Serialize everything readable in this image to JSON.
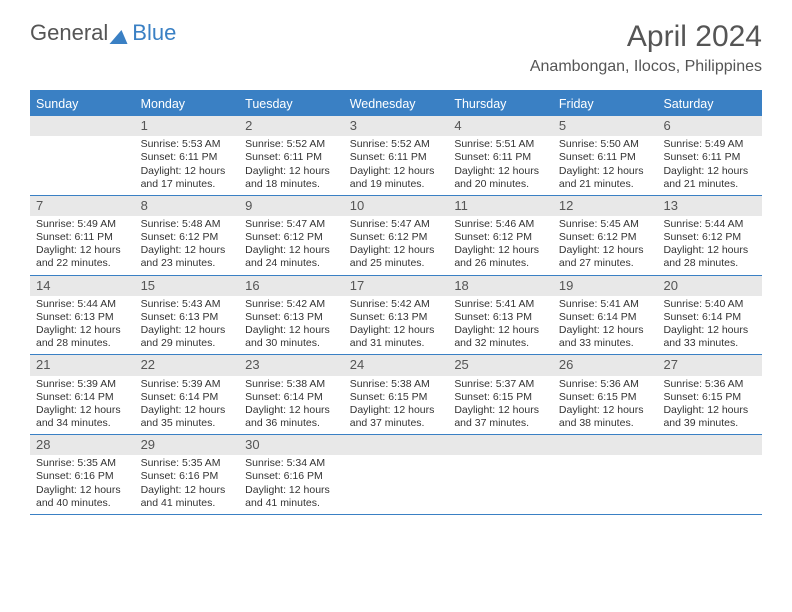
{
  "brand": {
    "part1": "General",
    "part2": "Blue"
  },
  "title": "April 2024",
  "location": "Anambongan, Ilocos, Philippines",
  "colors": {
    "accent": "#3a80c4",
    "daybar_bg": "#e8e8e8",
    "text": "#333333",
    "title_text": "#555555",
    "background": "#ffffff"
  },
  "dow": [
    "Sunday",
    "Monday",
    "Tuesday",
    "Wednesday",
    "Thursday",
    "Friday",
    "Saturday"
  ],
  "weeks": [
    [
      {
        "n": "",
        "sr": "",
        "ss": "",
        "dl": "",
        "dl2": ""
      },
      {
        "n": "1",
        "sr": "Sunrise: 5:53 AM",
        "ss": "Sunset: 6:11 PM",
        "dl": "Daylight: 12 hours",
        "dl2": "and 17 minutes."
      },
      {
        "n": "2",
        "sr": "Sunrise: 5:52 AM",
        "ss": "Sunset: 6:11 PM",
        "dl": "Daylight: 12 hours",
        "dl2": "and 18 minutes."
      },
      {
        "n": "3",
        "sr": "Sunrise: 5:52 AM",
        "ss": "Sunset: 6:11 PM",
        "dl": "Daylight: 12 hours",
        "dl2": "and 19 minutes."
      },
      {
        "n": "4",
        "sr": "Sunrise: 5:51 AM",
        "ss": "Sunset: 6:11 PM",
        "dl": "Daylight: 12 hours",
        "dl2": "and 20 minutes."
      },
      {
        "n": "5",
        "sr": "Sunrise: 5:50 AM",
        "ss": "Sunset: 6:11 PM",
        "dl": "Daylight: 12 hours",
        "dl2": "and 21 minutes."
      },
      {
        "n": "6",
        "sr": "Sunrise: 5:49 AM",
        "ss": "Sunset: 6:11 PM",
        "dl": "Daylight: 12 hours",
        "dl2": "and 21 minutes."
      }
    ],
    [
      {
        "n": "7",
        "sr": "Sunrise: 5:49 AM",
        "ss": "Sunset: 6:11 PM",
        "dl": "Daylight: 12 hours",
        "dl2": "and 22 minutes."
      },
      {
        "n": "8",
        "sr": "Sunrise: 5:48 AM",
        "ss": "Sunset: 6:12 PM",
        "dl": "Daylight: 12 hours",
        "dl2": "and 23 minutes."
      },
      {
        "n": "9",
        "sr": "Sunrise: 5:47 AM",
        "ss": "Sunset: 6:12 PM",
        "dl": "Daylight: 12 hours",
        "dl2": "and 24 minutes."
      },
      {
        "n": "10",
        "sr": "Sunrise: 5:47 AM",
        "ss": "Sunset: 6:12 PM",
        "dl": "Daylight: 12 hours",
        "dl2": "and 25 minutes."
      },
      {
        "n": "11",
        "sr": "Sunrise: 5:46 AM",
        "ss": "Sunset: 6:12 PM",
        "dl": "Daylight: 12 hours",
        "dl2": "and 26 minutes."
      },
      {
        "n": "12",
        "sr": "Sunrise: 5:45 AM",
        "ss": "Sunset: 6:12 PM",
        "dl": "Daylight: 12 hours",
        "dl2": "and 27 minutes."
      },
      {
        "n": "13",
        "sr": "Sunrise: 5:44 AM",
        "ss": "Sunset: 6:12 PM",
        "dl": "Daylight: 12 hours",
        "dl2": "and 28 minutes."
      }
    ],
    [
      {
        "n": "14",
        "sr": "Sunrise: 5:44 AM",
        "ss": "Sunset: 6:13 PM",
        "dl": "Daylight: 12 hours",
        "dl2": "and 28 minutes."
      },
      {
        "n": "15",
        "sr": "Sunrise: 5:43 AM",
        "ss": "Sunset: 6:13 PM",
        "dl": "Daylight: 12 hours",
        "dl2": "and 29 minutes."
      },
      {
        "n": "16",
        "sr": "Sunrise: 5:42 AM",
        "ss": "Sunset: 6:13 PM",
        "dl": "Daylight: 12 hours",
        "dl2": "and 30 minutes."
      },
      {
        "n": "17",
        "sr": "Sunrise: 5:42 AM",
        "ss": "Sunset: 6:13 PM",
        "dl": "Daylight: 12 hours",
        "dl2": "and 31 minutes."
      },
      {
        "n": "18",
        "sr": "Sunrise: 5:41 AM",
        "ss": "Sunset: 6:13 PM",
        "dl": "Daylight: 12 hours",
        "dl2": "and 32 minutes."
      },
      {
        "n": "19",
        "sr": "Sunrise: 5:41 AM",
        "ss": "Sunset: 6:14 PM",
        "dl": "Daylight: 12 hours",
        "dl2": "and 33 minutes."
      },
      {
        "n": "20",
        "sr": "Sunrise: 5:40 AM",
        "ss": "Sunset: 6:14 PM",
        "dl": "Daylight: 12 hours",
        "dl2": "and 33 minutes."
      }
    ],
    [
      {
        "n": "21",
        "sr": "Sunrise: 5:39 AM",
        "ss": "Sunset: 6:14 PM",
        "dl": "Daylight: 12 hours",
        "dl2": "and 34 minutes."
      },
      {
        "n": "22",
        "sr": "Sunrise: 5:39 AM",
        "ss": "Sunset: 6:14 PM",
        "dl": "Daylight: 12 hours",
        "dl2": "and 35 minutes."
      },
      {
        "n": "23",
        "sr": "Sunrise: 5:38 AM",
        "ss": "Sunset: 6:14 PM",
        "dl": "Daylight: 12 hours",
        "dl2": "and 36 minutes."
      },
      {
        "n": "24",
        "sr": "Sunrise: 5:38 AM",
        "ss": "Sunset: 6:15 PM",
        "dl": "Daylight: 12 hours",
        "dl2": "and 37 minutes."
      },
      {
        "n": "25",
        "sr": "Sunrise: 5:37 AM",
        "ss": "Sunset: 6:15 PM",
        "dl": "Daylight: 12 hours",
        "dl2": "and 37 minutes."
      },
      {
        "n": "26",
        "sr": "Sunrise: 5:36 AM",
        "ss": "Sunset: 6:15 PM",
        "dl": "Daylight: 12 hours",
        "dl2": "and 38 minutes."
      },
      {
        "n": "27",
        "sr": "Sunrise: 5:36 AM",
        "ss": "Sunset: 6:15 PM",
        "dl": "Daylight: 12 hours",
        "dl2": "and 39 minutes."
      }
    ],
    [
      {
        "n": "28",
        "sr": "Sunrise: 5:35 AM",
        "ss": "Sunset: 6:16 PM",
        "dl": "Daylight: 12 hours",
        "dl2": "and 40 minutes."
      },
      {
        "n": "29",
        "sr": "Sunrise: 5:35 AM",
        "ss": "Sunset: 6:16 PM",
        "dl": "Daylight: 12 hours",
        "dl2": "and 41 minutes."
      },
      {
        "n": "30",
        "sr": "Sunrise: 5:34 AM",
        "ss": "Sunset: 6:16 PM",
        "dl": "Daylight: 12 hours",
        "dl2": "and 41 minutes."
      },
      {
        "n": "",
        "sr": "",
        "ss": "",
        "dl": "",
        "dl2": ""
      },
      {
        "n": "",
        "sr": "",
        "ss": "",
        "dl": "",
        "dl2": ""
      },
      {
        "n": "",
        "sr": "",
        "ss": "",
        "dl": "",
        "dl2": ""
      },
      {
        "n": "",
        "sr": "",
        "ss": "",
        "dl": "",
        "dl2": ""
      }
    ]
  ]
}
